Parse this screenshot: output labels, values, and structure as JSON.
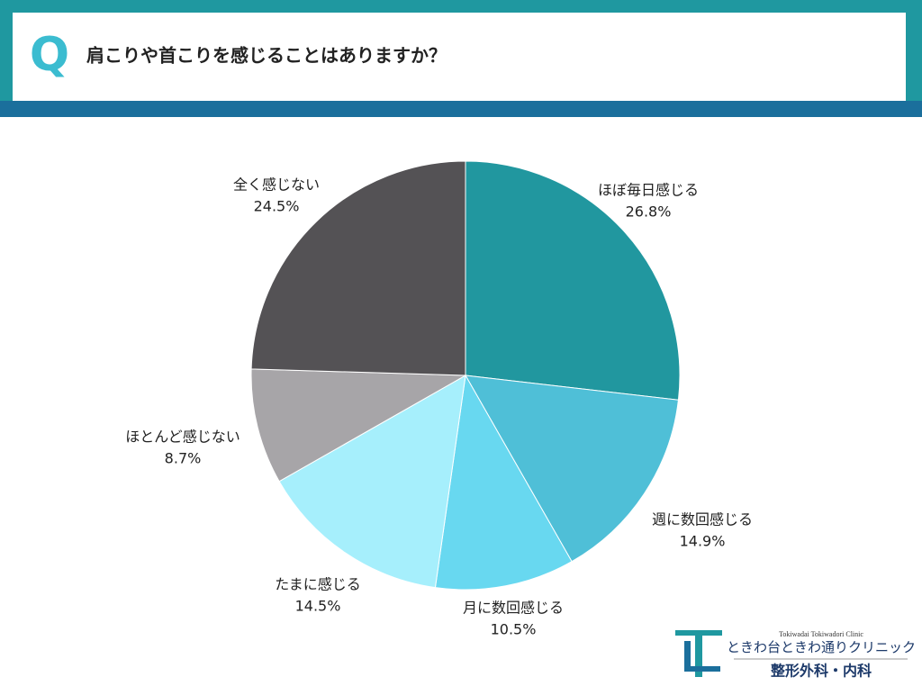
{
  "header": {
    "mark": "Q",
    "title": "肩こりや首こりを感じることはありますか？"
  },
  "chart_data": {
    "type": "pie",
    "categories": [
      "ほぼ毎日感じる",
      "週に数回感じる",
      "月に数回感じる",
      "たまに感じる",
      "ほとんど感じない",
      "全く感じない"
    ],
    "values": [
      26.8,
      14.9,
      10.5,
      14.5,
      8.7,
      24.5
    ],
    "value_labels": [
      "26.8%",
      "14.9%",
      "10.5%",
      "14.5%",
      "8.7%",
      "24.5%"
    ],
    "colors": [
      "#21979f",
      "#4fbfd7",
      "#68d8f0",
      "#a6effc",
      "#a7a5a8",
      "#545255"
    ]
  },
  "logo": {
    "english": "Tokiwadai Tokiwadori Clinic",
    "name": "ときわ台ときわ通りクリニック",
    "departments": "整形外科・内科"
  }
}
